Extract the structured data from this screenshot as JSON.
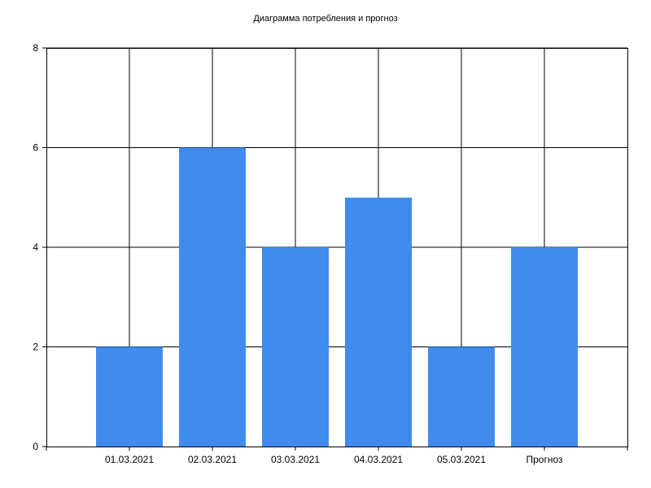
{
  "chart_data": {
    "type": "bar",
    "title": "Диаграмма потребления и прогноз",
    "categories": [
      "01.03.2021",
      "02.03.2021",
      "03.03.2021",
      "04.03.2021",
      "05.03.2021",
      "Прогноз"
    ],
    "values": [
      2,
      6,
      4,
      5,
      2,
      4
    ],
    "ylim": [
      0,
      8
    ],
    "yticks": [
      "0",
      "2",
      "4",
      "6",
      "8"
    ],
    "xlabel": "",
    "ylabel": "",
    "grid": true,
    "bar_color": "#418BEE",
    "grid_color": "#000000"
  }
}
